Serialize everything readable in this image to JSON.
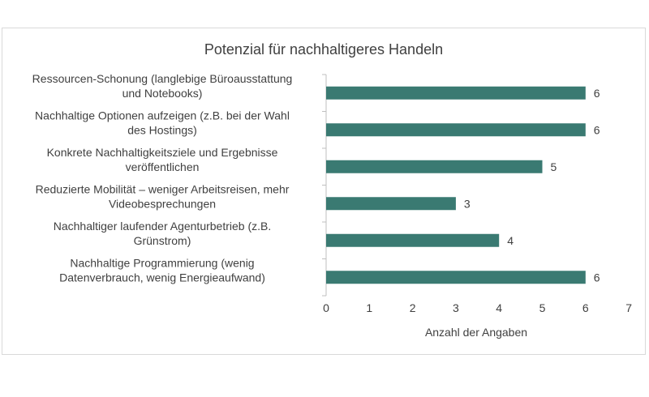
{
  "chart_data": {
    "type": "bar",
    "orientation": "horizontal",
    "title": "Potenzial für nachhaltigeres Handeln",
    "xlabel": "Anzahl der Angaben",
    "ylabel": "",
    "xlim": [
      0,
      7
    ],
    "xticks": [
      "0",
      "1",
      "2",
      "3",
      "4",
      "5",
      "6",
      "7"
    ],
    "grid": false,
    "legend": "none",
    "bar_color": "#3a7a72",
    "categories": [
      [
        "Ressourcen-Schonung (langlebige Büroausstattung",
        "und Notebooks)"
      ],
      [
        "Nachhaltige Optionen aufzeigen (z.B. bei der Wahl",
        "des Hostings)"
      ],
      [
        "Konkrete Nachhaltigkeitsziele und Ergebnisse",
        "veröffentlichen"
      ],
      [
        "Reduzierte Mobilität – weniger Arbeitsreisen, mehr",
        "Videobesprechungen"
      ],
      [
        "Nachhaltiger laufender Agenturbetrieb (z.B.",
        "Grünstrom)"
      ],
      [
        "Nachhaltige Programmierung (wenig",
        "Datenverbrauch, wenig Energieaufwand)"
      ]
    ],
    "values": [
      6,
      6,
      5,
      3,
      4,
      6
    ]
  }
}
